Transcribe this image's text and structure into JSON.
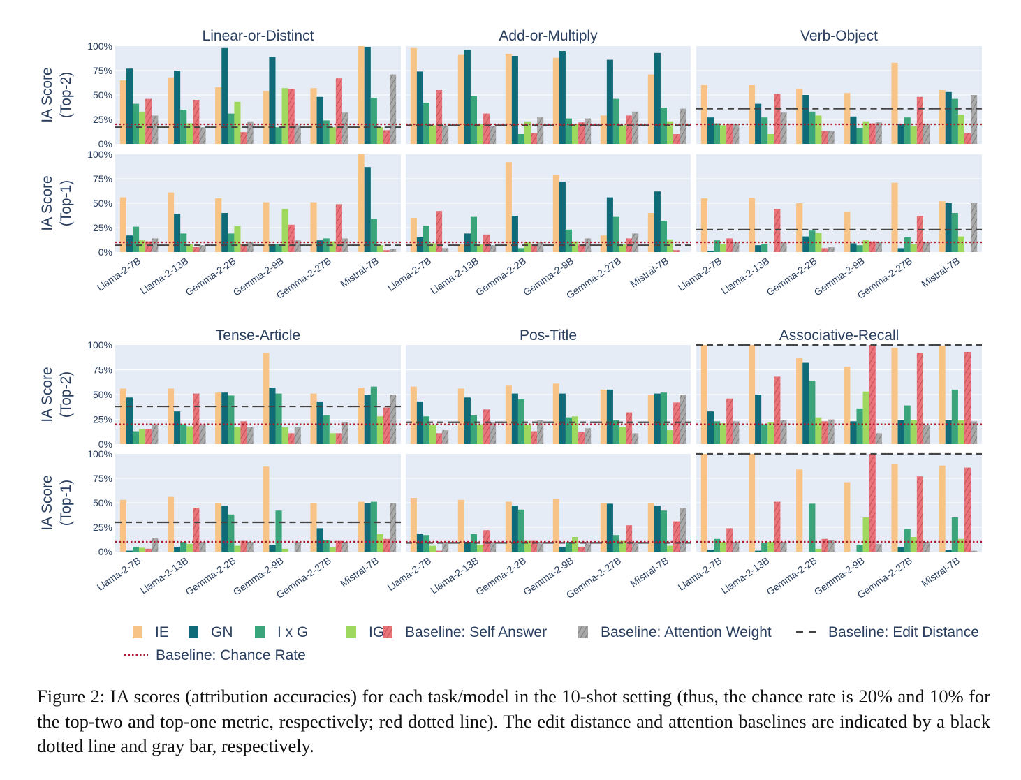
{
  "figure": {
    "caption": "Figure 2: IA scores (attribution accuracies) for each task/model in the 10-shot setting (thus, the chance rate is 20% and 10% for the top-two and top-one metric, respectively; red dotted line). The edit distance and attention baselines are indicated by a black dotted line and gray bar, respectively."
  },
  "colors": {
    "IE": "#f8c386",
    "GN": "#0f6b78",
    "IxG": "#3aa57a",
    "IG": "#9fd85f",
    "SelfAnswer": "#e87479",
    "AttentionWeight": "#a9a9a9",
    "EditDistance": "#444444",
    "ChanceRate": "#b2182b",
    "panel_bg": "#e5ecf6",
    "text": "#2a3f5f"
  },
  "chart_data": {
    "type": "bar",
    "ylabel_top2": "IA Score (Top-2)",
    "ylabel_top1": "IA Score (Top-1)",
    "yticks": [
      "0%",
      "25%",
      "50%",
      "75%",
      "100%"
    ],
    "ylim": [
      0,
      100
    ],
    "chance_rate": {
      "top2": 20,
      "top1": 10
    },
    "models": [
      "Llama-2-7B",
      "Llama-2-13B",
      "Gemma-2-2B",
      "Gemma-2-9B",
      "Gemma-2-27B",
      "Mistral-7B"
    ],
    "legend": [
      {
        "key": "IE",
        "label": "IE",
        "kind": "bar"
      },
      {
        "key": "GN",
        "label": "GN",
        "kind": "bar"
      },
      {
        "key": "IxG",
        "label": "I x G",
        "kind": "bar"
      },
      {
        "key": "IG",
        "label": "IG",
        "kind": "bar"
      },
      {
        "key": "SelfAnswer",
        "label": "Baseline: Self Answer",
        "kind": "hatch"
      },
      {
        "key": "AttentionWeight",
        "label": "Baseline: Attention Weight",
        "kind": "hatch"
      },
      {
        "key": "EditDistance",
        "label": "Baseline: Edit Distance",
        "kind": "dash"
      },
      {
        "key": "ChanceRate",
        "label": "Baseline: Chance Rate",
        "kind": "dot"
      }
    ],
    "series_order": [
      "IE",
      "GN",
      "IxG",
      "IG",
      "SelfAnswer",
      "AttentionWeight"
    ],
    "tasks": [
      {
        "name": "Linear-or-Distinct",
        "top2": {
          "IE": [
            65,
            68,
            58,
            54,
            57,
            100
          ],
          "GN": [
            77,
            75,
            98,
            89,
            48,
            99
          ],
          "IxG": [
            41,
            35,
            31,
            17,
            24,
            47
          ],
          "IG": [
            33,
            21,
            43,
            57,
            17,
            17
          ],
          "SelfAnswer": [
            46,
            45,
            12,
            56,
            67,
            14
          ],
          "AttentionWeight": [
            29,
            17,
            23,
            19,
            32,
            71
          ],
          "EditDistance": [
            17,
            17,
            17,
            17,
            17,
            17
          ]
        },
        "top1": {
          "IE": [
            56,
            61,
            55,
            51,
            51,
            100
          ],
          "GN": [
            17,
            39,
            40,
            8,
            12,
            87
          ],
          "IxG": [
            26,
            19,
            19,
            8,
            14,
            34
          ],
          "IG": [
            12,
            8,
            27,
            44,
            11,
            7
          ],
          "SelfAnswer": [
            11,
            5,
            8,
            28,
            49,
            2
          ],
          "AttentionWeight": [
            14,
            7,
            10,
            12,
            14,
            3
          ],
          "EditDistance": [
            7,
            7,
            7,
            7,
            7,
            7
          ]
        }
      },
      {
        "name": "Add-or-Multiply",
        "top2": {
          "IE": [
            98,
            91,
            92,
            88,
            29,
            71
          ],
          "GN": [
            74,
            96,
            90,
            95,
            86,
            93
          ],
          "IxG": [
            42,
            49,
            10,
            26,
            46,
            37
          ],
          "IG": [
            19,
            20,
            23,
            20,
            19,
            23
          ],
          "SelfAnswer": [
            55,
            31,
            11,
            22,
            29,
            10
          ],
          "AttentionWeight": [
            19,
            18,
            27,
            26,
            33,
            36
          ],
          "EditDistance": [
            19,
            19,
            19,
            19,
            19,
            19
          ]
        },
        "top1": {
          "IE": [
            35,
            8,
            92,
            79,
            17,
            40
          ],
          "GN": [
            15,
            19,
            37,
            72,
            56,
            62
          ],
          "IxG": [
            27,
            36,
            4,
            23,
            36,
            32
          ],
          "IG": [
            9,
            8,
            10,
            11,
            8,
            13
          ],
          "SelfAnswer": [
            42,
            18,
            8,
            8,
            14,
            2
          ],
          "AttentionWeight": [
            4,
            7,
            10,
            14,
            19,
            0
          ],
          "EditDistance": [
            7,
            7,
            7,
            7,
            7,
            7
          ]
        }
      },
      {
        "name": "Verb-Object",
        "top2": {
          "IE": [
            60,
            60,
            56,
            52,
            83,
            55
          ],
          "GN": [
            27,
            41,
            50,
            28,
            20,
            53
          ],
          "IxG": [
            21,
            27,
            33,
            16,
            27,
            46
          ],
          "IG": [
            19,
            10,
            29,
            23,
            18,
            30
          ],
          "SelfAnswer": [
            20,
            51,
            13,
            21,
            48,
            11
          ],
          "AttentionWeight": [
            20,
            32,
            13,
            22,
            20,
            50
          ],
          "EditDistance": [
            36,
            36,
            36,
            36,
            36,
            36
          ]
        },
        "top1": {
          "IE": [
            55,
            55,
            50,
            41,
            71,
            52
          ],
          "GN": [
            1,
            7,
            16,
            9,
            4,
            50
          ],
          "IxG": [
            12,
            8,
            22,
            7,
            15,
            40
          ],
          "IG": [
            8,
            0,
            20,
            12,
            8,
            16
          ],
          "SelfAnswer": [
            14,
            44,
            4,
            11,
            37,
            0
          ],
          "AttentionWeight": [
            10,
            10,
            5,
            10,
            10,
            50
          ],
          "EditDistance": [
            23,
            23,
            23,
            23,
            23,
            23
          ]
        }
      },
      {
        "name": "Tense-Article",
        "top2": {
          "IE": [
            56,
            56,
            52,
            92,
            51,
            57
          ],
          "GN": [
            47,
            33,
            52,
            57,
            43,
            50
          ],
          "IxG": [
            13,
            20,
            49,
            51,
            29,
            58
          ],
          "IG": [
            15,
            18,
            17,
            17,
            11,
            28
          ],
          "SelfAnswer": [
            15,
            51,
            23,
            11,
            11,
            37
          ],
          "AttentionWeight": [
            20,
            20,
            17,
            17,
            22,
            50
          ],
          "EditDistance": [
            38,
            38,
            38,
            38,
            38,
            38
          ]
        },
        "top1": {
          "IE": [
            53,
            56,
            50,
            87,
            50,
            51
          ],
          "GN": [
            1,
            5,
            47,
            7,
            24,
            50
          ],
          "IxG": [
            5,
            10,
            38,
            42,
            12,
            51
          ],
          "IG": [
            4,
            8,
            6,
            3,
            5,
            18
          ],
          "SelfAnswer": [
            3,
            45,
            11,
            0,
            11,
            13
          ],
          "AttentionWeight": [
            14,
            10,
            10,
            10,
            10,
            50
          ],
          "EditDistance": [
            30,
            30,
            30,
            30,
            30,
            30
          ]
        }
      },
      {
        "name": "Pos-Title",
        "top2": {
          "IE": [
            58,
            56,
            59,
            61,
            55,
            50
          ],
          "GN": [
            43,
            47,
            51,
            51,
            55,
            51
          ],
          "IxG": [
            28,
            29,
            45,
            27,
            24,
            52
          ],
          "IG": [
            19,
            20,
            19,
            28,
            17,
            14
          ],
          "SelfAnswer": [
            11,
            35,
            13,
            12,
            32,
            42
          ],
          "AttentionWeight": [
            14,
            22,
            24,
            16,
            11,
            50
          ],
          "EditDistance": [
            22,
            22,
            22,
            22,
            22,
            22
          ]
        },
        "top1": {
          "IE": [
            55,
            53,
            51,
            54,
            50,
            50
          ],
          "GN": [
            18,
            10,
            47,
            5,
            49,
            47
          ],
          "IxG": [
            17,
            18,
            43,
            10,
            17,
            42
          ],
          "IG": [
            6,
            7,
            11,
            15,
            11,
            6
          ],
          "SelfAnswer": [
            1,
            22,
            11,
            5,
            27,
            31
          ],
          "AttentionWeight": [
            10,
            10,
            10,
            10,
            10,
            45
          ],
          "EditDistance": [
            9,
            9,
            9,
            9,
            9,
            9
          ]
        }
      },
      {
        "name": "Associative-Recall",
        "top2": {
          "IE": [
            100,
            100,
            87,
            78,
            97,
            99
          ],
          "GN": [
            33,
            50,
            82,
            23,
            24,
            24
          ],
          "IxG": [
            23,
            20,
            64,
            36,
            39,
            55
          ],
          "IG": [
            21,
            22,
            27,
            53,
            24,
            24
          ],
          "SelfAnswer": [
            46,
            68,
            23,
            100,
            92,
            93
          ],
          "AttentionWeight": [
            23,
            24,
            25,
            11,
            19,
            23
          ],
          "EditDistance": [
            100,
            100,
            100,
            100,
            100,
            100
          ]
        },
        "top1": {
          "IE": [
            100,
            100,
            84,
            71,
            90,
            88
          ],
          "GN": [
            2,
            1,
            0,
            0,
            5,
            2
          ],
          "IxG": [
            13,
            9,
            49,
            7,
            23,
            35
          ],
          "IG": [
            10,
            10,
            3,
            35,
            15,
            13
          ],
          "SelfAnswer": [
            24,
            51,
            13,
            100,
            77,
            86
          ],
          "AttentionWeight": [
            10,
            10,
            12,
            8,
            10,
            1
          ],
          "EditDistance": [
            100,
            100,
            100,
            100,
            100,
            100
          ]
        }
      }
    ]
  }
}
